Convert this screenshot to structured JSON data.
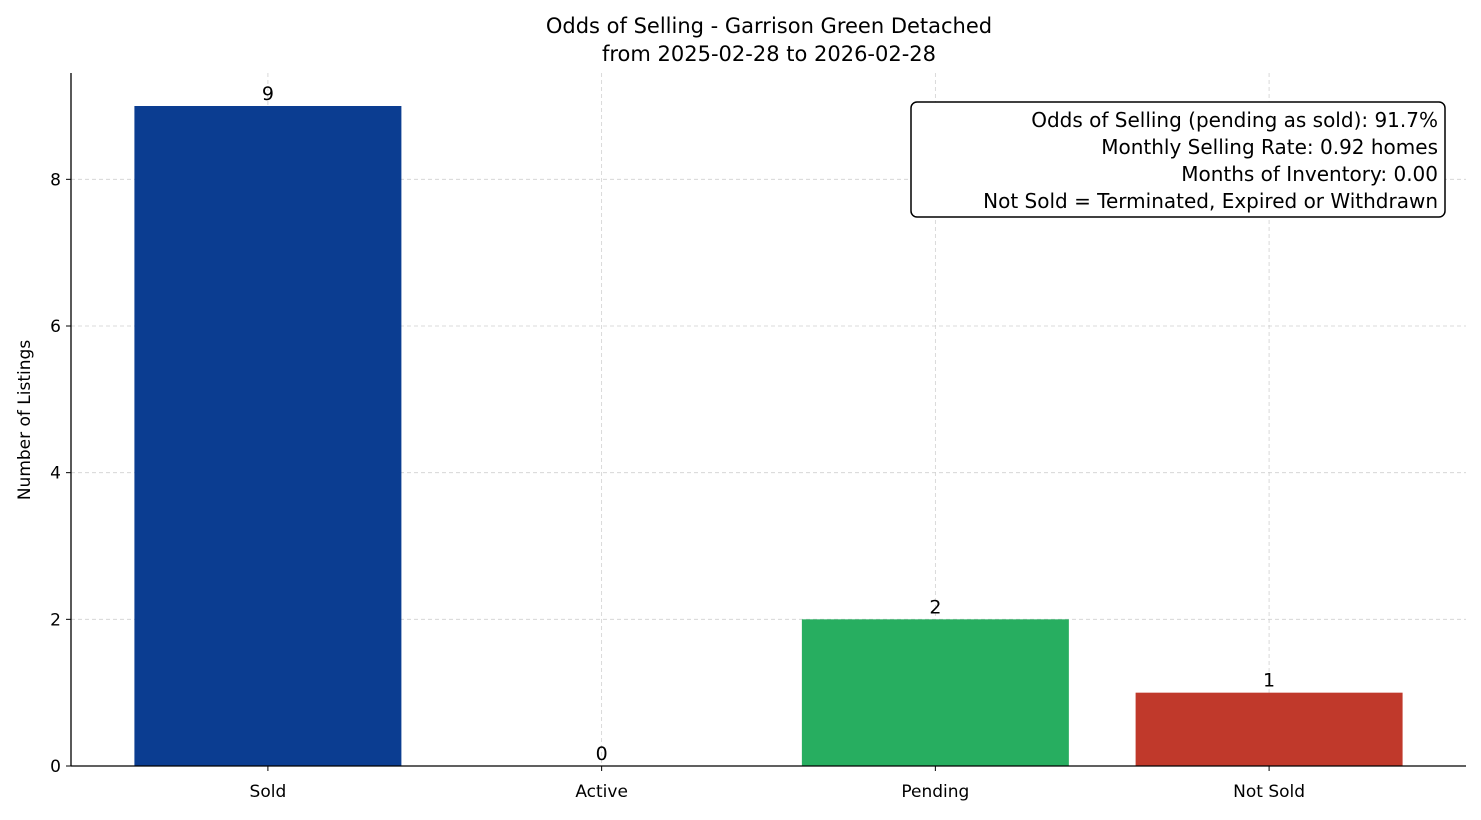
{
  "chart_data": {
    "type": "bar",
    "title": "Odds of Selling - Garrison Green Detached",
    "subtitle": "from 2025-02-28 to 2026-02-28",
    "xlabel": "",
    "ylabel": "Number of Listings",
    "categories": [
      "Sold",
      "Active",
      "Pending",
      "Not Sold"
    ],
    "values": [
      9,
      0,
      2,
      1
    ],
    "data_labels": [
      "9",
      "0",
      "2",
      "1"
    ],
    "colors": [
      "#0b3d91",
      "#0b3d91",
      "#27ae60",
      "#c0392b"
    ],
    "ylim": [
      0,
      9.45
    ],
    "yticks": [
      0,
      2,
      4,
      6,
      8
    ],
    "grid": true,
    "annotation_box": {
      "placement": "top-right",
      "lines": [
        "Odds of Selling (pending as sold): 91.7%",
        "Monthly Selling Rate: 0.92 homes",
        "Months of Inventory: 0.00",
        "Not Sold = Terminated, Expired or Withdrawn"
      ]
    }
  }
}
